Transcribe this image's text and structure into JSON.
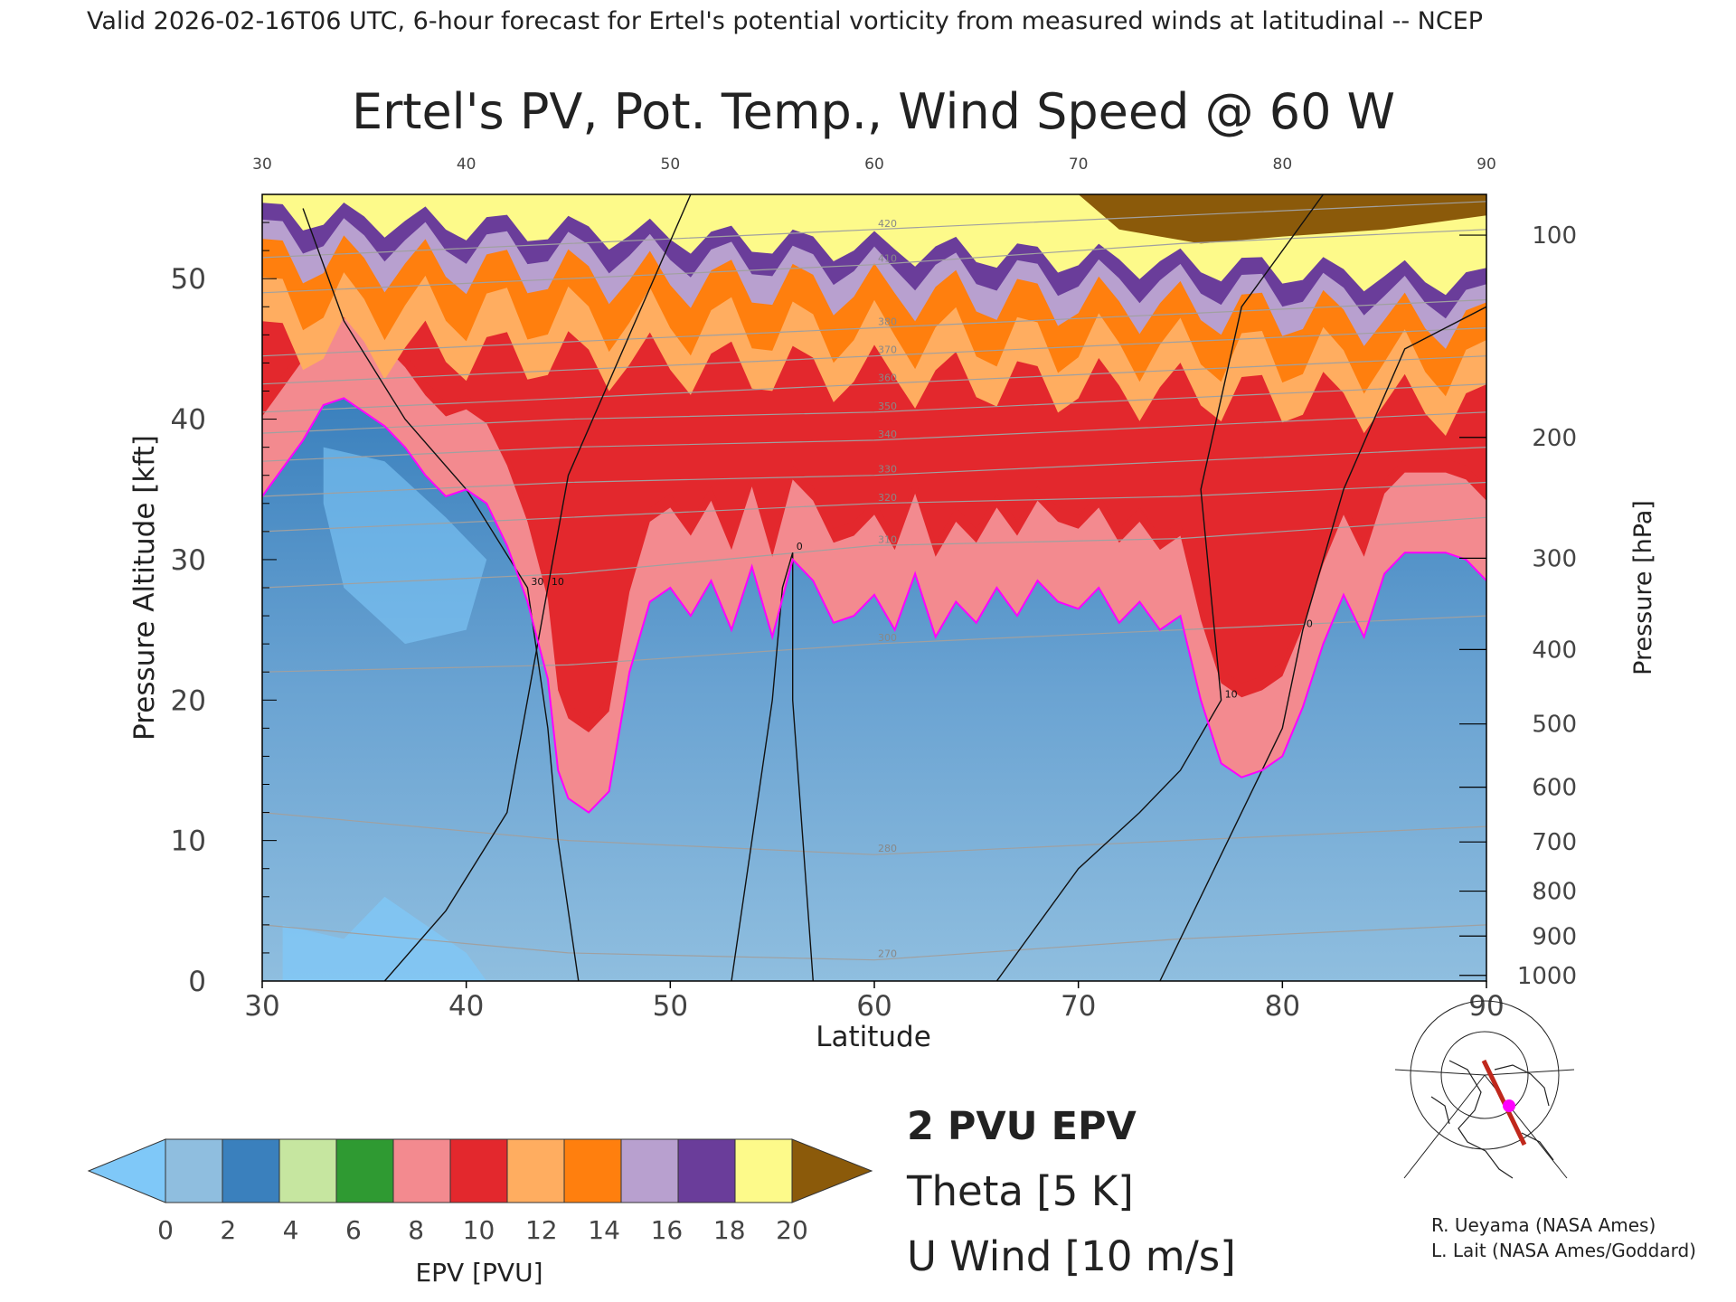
{
  "header": {
    "valid_line": "Valid 2026-02-16T06 UTC, 6-hour forecast for Ertel's potential vorticity from measured winds at latitudinal -- NCEP"
  },
  "chart_data": {
    "type": "heatmap",
    "title": "Ertel's PV, Pot. Temp., Wind Speed @ 60 W",
    "xlabel": "Latitude",
    "ylabel": "Pressure Altitude [kft]",
    "y2label": "Pressure [hPa]",
    "xlim": [
      30,
      90
    ],
    "ylim": [
      0,
      56
    ],
    "x_ticks": [
      30,
      40,
      50,
      60,
      70,
      80,
      90
    ],
    "x_tick_labels": [
      "30",
      "40",
      "50",
      "60",
      "70",
      "80",
      "90"
    ],
    "y_ticks": [
      0,
      10,
      20,
      30,
      40,
      50
    ],
    "y_tick_labels": [
      "0",
      "10",
      "20",
      "30",
      "40",
      "50"
    ],
    "pressure_ticks": [
      {
        "label": "100",
        "kft": 53.1
      },
      {
        "label": "200",
        "kft": 38.7
      },
      {
        "label": "300",
        "kft": 30.1
      },
      {
        "label": "400",
        "kft": 23.6
      },
      {
        "label": "500",
        "kft": 18.3
      },
      {
        "label": "600",
        "kft": 13.8
      },
      {
        "label": "700",
        "kft": 9.9
      },
      {
        "label": "800",
        "kft": 6.4
      },
      {
        "label": "900",
        "kft": 3.2
      },
      {
        "label": "1000",
        "kft": 0.4
      }
    ],
    "epv_scale": {
      "label": "EPV [PVU]",
      "tick_labels": [
        "0",
        "2",
        "4",
        "6",
        "8",
        "10",
        "12",
        "14",
        "16",
        "18",
        "20"
      ],
      "under_color": "#7fc8f8",
      "over_color": "#8b5a0a",
      "colors": [
        "#8fbedf",
        "#3a80bd",
        "#c6e6a0",
        "#2f9a32",
        "#f38a8f",
        "#e3282d",
        "#ffad60",
        "#ff7f0e",
        "#b8a0cf",
        "#6a3d9a",
        "#fdfa8a"
      ]
    },
    "tropopause_2pvu": [
      [
        30,
        34.5
      ],
      [
        31,
        36.5
      ],
      [
        32,
        38.5
      ],
      [
        33,
        41.0
      ],
      [
        34,
        41.5
      ],
      [
        35,
        40.5
      ],
      [
        36,
        39.5
      ],
      [
        37,
        38.0
      ],
      [
        38,
        36.0
      ],
      [
        39,
        34.5
      ],
      [
        40,
        35.0
      ],
      [
        41,
        34.0
      ],
      [
        42,
        31.0
      ],
      [
        43,
        27.0
      ],
      [
        44,
        21.5
      ],
      [
        44.5,
        15.0
      ],
      [
        45,
        13.0
      ],
      [
        46,
        12.0
      ],
      [
        47,
        13.5
      ],
      [
        48,
        22.0
      ],
      [
        49,
        27.0
      ],
      [
        50,
        28.0
      ],
      [
        51,
        26.0
      ],
      [
        52,
        28.5
      ],
      [
        53,
        25.0
      ],
      [
        54,
        29.5
      ],
      [
        55,
        24.5
      ],
      [
        56,
        30.0
      ],
      [
        57,
        28.5
      ],
      [
        58,
        25.5
      ],
      [
        59,
        26.0
      ],
      [
        60,
        27.5
      ],
      [
        61,
        25.0
      ],
      [
        62,
        29.0
      ],
      [
        63,
        24.5
      ],
      [
        64,
        27.0
      ],
      [
        65,
        25.5
      ],
      [
        66,
        28.0
      ],
      [
        67,
        26.0
      ],
      [
        68,
        28.5
      ],
      [
        69,
        27.0
      ],
      [
        70,
        26.5
      ],
      [
        71,
        28.0
      ],
      [
        72,
        25.5
      ],
      [
        73,
        27.0
      ],
      [
        74,
        25.0
      ],
      [
        75,
        26.0
      ],
      [
        76,
        20.0
      ],
      [
        77,
        15.5
      ],
      [
        78,
        14.5
      ],
      [
        79,
        15.0
      ],
      [
        80,
        16.0
      ],
      [
        81,
        19.5
      ],
      [
        82,
        24.0
      ],
      [
        83,
        27.5
      ],
      [
        84,
        24.5
      ],
      [
        85,
        29.0
      ],
      [
        86,
        30.5
      ],
      [
        87,
        30.5
      ],
      [
        88,
        30.5
      ],
      [
        89,
        30.0
      ],
      [
        90,
        28.5
      ]
    ],
    "contours": [
      {
        "field": "theta",
        "label": "300",
        "points": [
          [
            30,
            22
          ],
          [
            45,
            22.5
          ],
          [
            60,
            24
          ],
          [
            75,
            25
          ],
          [
            90,
            26
          ]
        ]
      },
      {
        "field": "theta",
        "label": "310",
        "points": [
          [
            30,
            28
          ],
          [
            45,
            29
          ],
          [
            60,
            31
          ],
          [
            75,
            31.5
          ],
          [
            90,
            33
          ]
        ]
      },
      {
        "field": "theta",
        "label": "320",
        "points": [
          [
            30,
            32
          ],
          [
            45,
            33
          ],
          [
            60,
            34
          ],
          [
            75,
            34.5
          ],
          [
            90,
            35.5
          ]
        ]
      },
      {
        "field": "theta",
        "label": "330",
        "points": [
          [
            30,
            34.5
          ],
          [
            45,
            35.5
          ],
          [
            60,
            36
          ],
          [
            75,
            37
          ],
          [
            90,
            38
          ]
        ]
      },
      {
        "field": "theta",
        "label": "340",
        "points": [
          [
            30,
            37
          ],
          [
            45,
            38
          ],
          [
            60,
            38.5
          ],
          [
            75,
            39.5
          ],
          [
            90,
            40.5
          ]
        ]
      },
      {
        "field": "theta",
        "label": "350",
        "points": [
          [
            30,
            39
          ],
          [
            45,
            40
          ],
          [
            60,
            40.5
          ],
          [
            75,
            41.5
          ],
          [
            90,
            42.5
          ]
        ]
      },
      {
        "field": "theta",
        "label": "360",
        "points": [
          [
            30,
            40.5
          ],
          [
            45,
            41.5
          ],
          [
            60,
            42.5
          ],
          [
            75,
            43.5
          ],
          [
            90,
            44.5
          ]
        ]
      },
      {
        "field": "theta",
        "label": "370",
        "points": [
          [
            30,
            42.5
          ],
          [
            45,
            43.5
          ],
          [
            60,
            44.5
          ],
          [
            75,
            45.5
          ],
          [
            90,
            46.5
          ]
        ]
      },
      {
        "field": "theta",
        "label": "380",
        "points": [
          [
            30,
            44.5
          ],
          [
            45,
            45.5
          ],
          [
            60,
            46.5
          ],
          [
            75,
            47.5
          ],
          [
            90,
            48.5
          ]
        ]
      },
      {
        "field": "theta",
        "label": "410",
        "points": [
          [
            30,
            49
          ],
          [
            45,
            50
          ],
          [
            60,
            51
          ],
          [
            75,
            52.5
          ],
          [
            90,
            53.5
          ]
        ]
      },
      {
        "field": "theta",
        "label": "420",
        "points": [
          [
            30,
            51.5
          ],
          [
            45,
            52.5
          ],
          [
            60,
            53.5
          ],
          [
            75,
            54.5
          ],
          [
            90,
            55.5
          ]
        ]
      },
      {
        "field": "theta",
        "label": "280",
        "points": [
          [
            30,
            12
          ],
          [
            45,
            10
          ],
          [
            60,
            9
          ],
          [
            75,
            10
          ],
          [
            90,
            11
          ]
        ]
      },
      {
        "field": "theta",
        "label": "270",
        "points": [
          [
            30,
            4
          ],
          [
            45,
            2
          ],
          [
            60,
            1.5
          ],
          [
            75,
            3
          ],
          [
            90,
            4
          ]
        ]
      },
      {
        "field": "u_wind",
        "label": "30",
        "points": [
          [
            32,
            55
          ],
          [
            34,
            47
          ],
          [
            37,
            40
          ],
          [
            40,
            35
          ],
          [
            43,
            28
          ],
          [
            44,
            18
          ],
          [
            44.5,
            10
          ],
          [
            45.5,
            0
          ]
        ]
      },
      {
        "field": "u_wind",
        "label": "10",
        "points": [
          [
            36,
            0
          ],
          [
            39,
            5
          ],
          [
            42,
            12
          ],
          [
            43,
            20
          ],
          [
            44,
            28
          ],
          [
            45,
            36
          ],
          [
            48,
            46
          ],
          [
            51,
            56
          ]
        ]
      },
      {
        "field": "u_wind",
        "label": "0",
        "points": [
          [
            53,
            0
          ],
          [
            54,
            10
          ],
          [
            55,
            20
          ],
          [
            55.5,
            28
          ],
          [
            56,
            30.5
          ],
          [
            56,
            20
          ],
          [
            56.5,
            10
          ],
          [
            57,
            0
          ]
        ]
      },
      {
        "field": "u_wind",
        "label": "10",
        "points": [
          [
            66,
            0
          ],
          [
            70,
            8
          ],
          [
            73,
            12
          ],
          [
            75,
            15
          ],
          [
            77,
            20
          ],
          [
            76,
            35
          ],
          [
            78,
            48
          ],
          [
            82,
            56
          ]
        ]
      },
      {
        "field": "u_wind",
        "label": "0",
        "points": [
          [
            74,
            0
          ],
          [
            76,
            6
          ],
          [
            78,
            12
          ],
          [
            80,
            18
          ],
          [
            81,
            25
          ],
          [
            83,
            35
          ],
          [
            86,
            45
          ],
          [
            90,
            48
          ]
        ]
      }
    ],
    "legend": [
      {
        "label": "2 PVU EPV",
        "color": "#ff00ff"
      },
      {
        "label": "Theta [5 K]",
        "color": "#a0a0a0"
      },
      {
        "label": "U Wind [10 m/s]",
        "color": "#000000"
      }
    ],
    "legend_placement": "bottom-center"
  },
  "footer": {
    "credit_line1": "R. Ueyama (NASA Ames)",
    "credit_line2": "L. Lait (NASA Ames/Goddard)"
  },
  "locator_map": {
    "line_color": "#c0281c",
    "marker_color": "#ff00ff"
  }
}
